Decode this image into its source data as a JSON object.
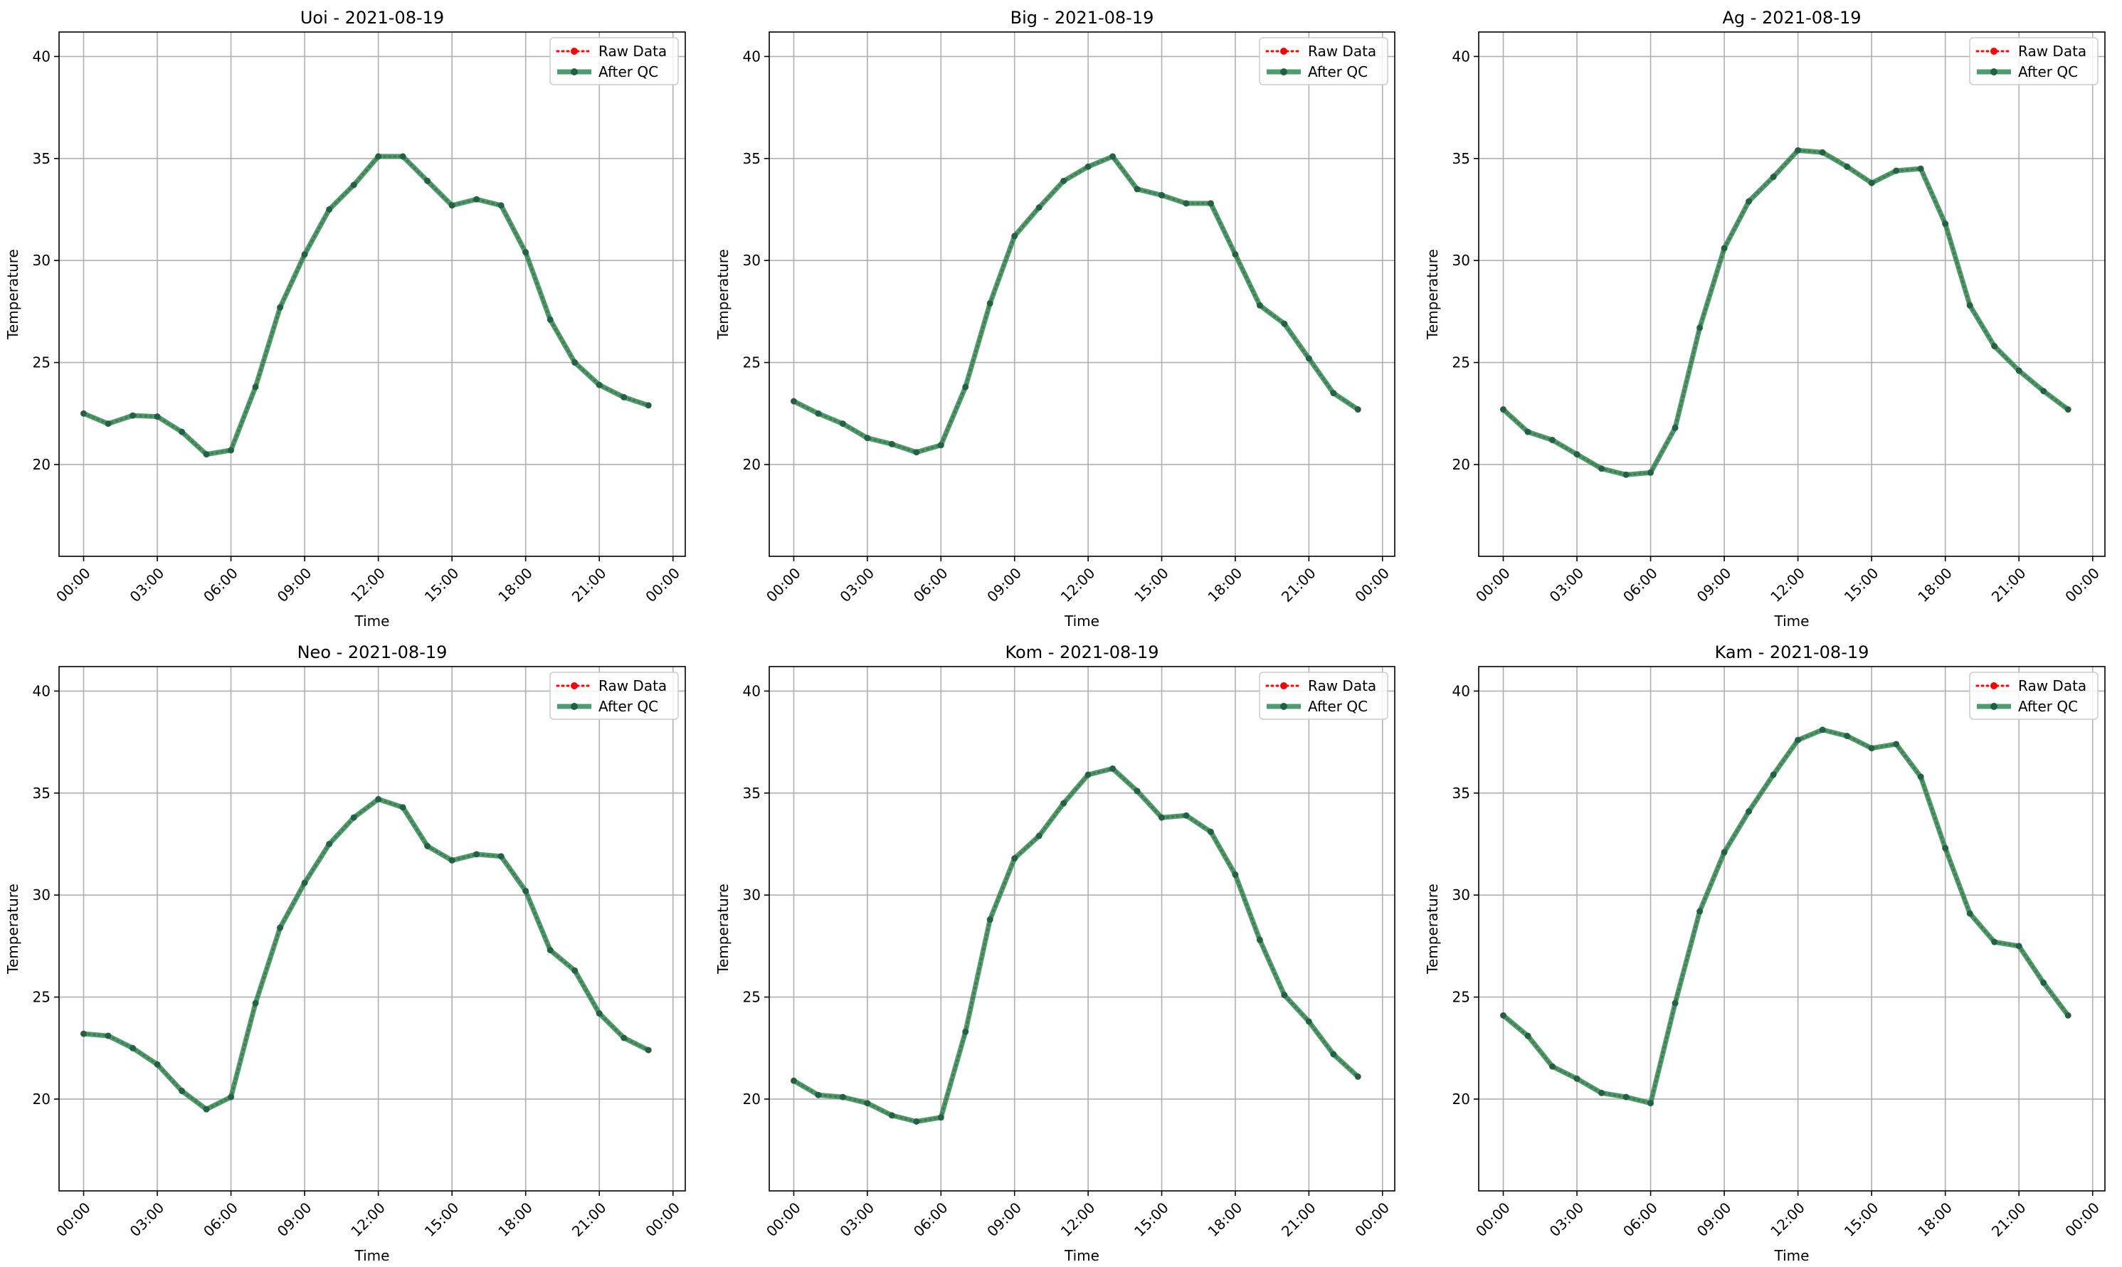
{
  "figure": {
    "legend_labels": [
      "Raw Data",
      "After QC"
    ],
    "colors": {
      "raw": "#ff0000",
      "qc": "#2e8b57",
      "grid": "#b0b0b0",
      "axis": "#000000"
    }
  },
  "chart_data": [
    {
      "type": "line",
      "title": "Uoi - 2021-08-19",
      "xlabel": "Time",
      "ylabel": "Temperature",
      "xlim": [
        "2021-08-18T23:00",
        "2021-08-20T00:30"
      ],
      "ylim": [
        15.5,
        41.2
      ],
      "x_ticks": [
        "00:00",
        "03:00",
        "06:00",
        "09:00",
        "12:00",
        "15:00",
        "18:00",
        "21:00",
        "00:00"
      ],
      "y_ticks": [
        20,
        25,
        30,
        35,
        40
      ],
      "grid": true,
      "legend_position": "upper right",
      "x": [
        "00:00",
        "01:00",
        "02:00",
        "03:00",
        "04:00",
        "05:00",
        "06:00",
        "07:00",
        "08:00",
        "09:00",
        "10:00",
        "11:00",
        "12:00",
        "13:00",
        "14:00",
        "15:00",
        "16:00",
        "17:00",
        "18:00",
        "19:00",
        "20:00",
        "21:00",
        "22:00",
        "23:00"
      ],
      "series": [
        {
          "name": "Raw Data",
          "values": [
            22.5,
            22.0,
            22.4,
            22.35,
            21.6,
            20.5,
            20.7,
            23.8,
            27.7,
            30.3,
            32.5,
            33.7,
            35.1,
            35.1,
            33.9,
            32.7,
            33.0,
            32.7,
            30.4,
            27.1,
            25.0,
            23.9,
            23.3,
            22.9
          ]
        },
        {
          "name": "After QC",
          "values": [
            22.5,
            22.0,
            22.4,
            22.35,
            21.6,
            20.5,
            20.7,
            23.8,
            27.7,
            30.3,
            32.5,
            33.7,
            35.1,
            35.1,
            33.9,
            32.7,
            33.0,
            32.7,
            30.4,
            27.1,
            25.0,
            23.9,
            23.3,
            22.9
          ]
        }
      ]
    },
    {
      "type": "line",
      "title": "Big - 2021-08-19",
      "xlabel": "Time",
      "ylabel": "Temperature",
      "xlim": [
        "2021-08-18T23:00",
        "2021-08-20T00:30"
      ],
      "ylim": [
        15.5,
        41.2
      ],
      "x_ticks": [
        "00:00",
        "03:00",
        "06:00",
        "09:00",
        "12:00",
        "15:00",
        "18:00",
        "21:00",
        "00:00"
      ],
      "y_ticks": [
        20,
        25,
        30,
        35,
        40
      ],
      "grid": true,
      "legend_position": "upper right",
      "x": [
        "00:00",
        "01:00",
        "02:00",
        "03:00",
        "04:00",
        "05:00",
        "06:00",
        "07:00",
        "08:00",
        "09:00",
        "10:00",
        "11:00",
        "12:00",
        "13:00",
        "14:00",
        "15:00",
        "16:00",
        "17:00",
        "18:00",
        "19:00",
        "20:00",
        "21:00",
        "22:00",
        "23:00"
      ],
      "series": [
        {
          "name": "Raw Data",
          "values": [
            23.1,
            22.5,
            22.0,
            21.3,
            21.0,
            20.6,
            20.95,
            23.8,
            27.9,
            31.2,
            32.6,
            33.9,
            34.6,
            35.1,
            33.5,
            33.2,
            32.8,
            32.8,
            30.3,
            27.8,
            26.9,
            25.2,
            23.5,
            22.7
          ]
        },
        {
          "name": "After QC",
          "values": [
            23.1,
            22.5,
            22.0,
            21.3,
            21.0,
            20.6,
            20.95,
            23.8,
            27.9,
            31.2,
            32.6,
            33.9,
            34.6,
            35.1,
            33.5,
            33.2,
            32.8,
            32.8,
            30.3,
            27.8,
            26.9,
            25.2,
            23.5,
            22.7
          ]
        }
      ]
    },
    {
      "type": "line",
      "title": "Ag - 2021-08-19",
      "xlabel": "Time",
      "ylabel": "Temperature",
      "xlim": [
        "2021-08-18T23:00",
        "2021-08-20T00:30"
      ],
      "ylim": [
        15.5,
        41.2
      ],
      "x_ticks": [
        "00:00",
        "03:00",
        "06:00",
        "09:00",
        "12:00",
        "15:00",
        "18:00",
        "21:00",
        "00:00"
      ],
      "y_ticks": [
        20,
        25,
        30,
        35,
        40
      ],
      "grid": true,
      "legend_position": "upper right",
      "x": [
        "00:00",
        "01:00",
        "02:00",
        "03:00",
        "04:00",
        "05:00",
        "06:00",
        "07:00",
        "08:00",
        "09:00",
        "10:00",
        "11:00",
        "12:00",
        "13:00",
        "14:00",
        "15:00",
        "16:00",
        "17:00",
        "18:00",
        "19:00",
        "20:00",
        "21:00",
        "22:00",
        "23:00"
      ],
      "series": [
        {
          "name": "Raw Data",
          "values": [
            22.7,
            21.6,
            21.2,
            20.5,
            19.8,
            19.5,
            19.6,
            21.8,
            26.7,
            30.6,
            32.9,
            34.1,
            35.4,
            35.3,
            34.6,
            33.8,
            34.4,
            34.5,
            31.8,
            27.8,
            25.8,
            24.6,
            23.6,
            22.7
          ]
        },
        {
          "name": "After QC",
          "values": [
            22.7,
            21.6,
            21.2,
            20.5,
            19.8,
            19.5,
            19.6,
            21.8,
            26.7,
            30.6,
            32.9,
            34.1,
            35.4,
            35.3,
            34.6,
            33.8,
            34.4,
            34.5,
            31.8,
            27.8,
            25.8,
            24.6,
            23.6,
            22.7
          ]
        }
      ]
    },
    {
      "type": "line",
      "title": "Neo - 2021-08-19",
      "xlabel": "Time",
      "ylabel": "Temperature",
      "xlim": [
        "2021-08-18T23:00",
        "2021-08-20T00:30"
      ],
      "ylim": [
        15.5,
        41.2
      ],
      "x_ticks": [
        "00:00",
        "03:00",
        "06:00",
        "09:00",
        "12:00",
        "15:00",
        "18:00",
        "21:00",
        "00:00"
      ],
      "y_ticks": [
        20,
        25,
        30,
        35,
        40
      ],
      "grid": true,
      "legend_position": "upper right",
      "x": [
        "00:00",
        "01:00",
        "02:00",
        "03:00",
        "04:00",
        "05:00",
        "06:00",
        "07:00",
        "08:00",
        "09:00",
        "10:00",
        "11:00",
        "12:00",
        "13:00",
        "14:00",
        "15:00",
        "16:00",
        "17:00",
        "18:00",
        "19:00",
        "20:00",
        "21:00",
        "22:00",
        "23:00"
      ],
      "series": [
        {
          "name": "Raw Data",
          "values": [
            23.2,
            23.1,
            22.5,
            21.7,
            20.4,
            19.5,
            20.1,
            24.7,
            28.4,
            30.6,
            32.5,
            33.8,
            34.7,
            34.3,
            32.4,
            31.7,
            32.0,
            31.9,
            30.2,
            27.3,
            26.3,
            24.2,
            23.0,
            22.4
          ]
        },
        {
          "name": "After QC",
          "values": [
            23.2,
            23.1,
            22.5,
            21.7,
            20.4,
            19.5,
            20.1,
            24.7,
            28.4,
            30.6,
            32.5,
            33.8,
            34.7,
            34.3,
            32.4,
            31.7,
            32.0,
            31.9,
            30.2,
            27.3,
            26.3,
            24.2,
            23.0,
            22.4
          ]
        }
      ]
    },
    {
      "type": "line",
      "title": "Kom - 2021-08-19",
      "xlabel": "Time",
      "ylabel": "Temperature",
      "xlim": [
        "2021-08-18T23:00",
        "2021-08-20T00:30"
      ],
      "ylim": [
        15.5,
        41.2
      ],
      "x_ticks": [
        "00:00",
        "03:00",
        "06:00",
        "09:00",
        "12:00",
        "15:00",
        "18:00",
        "21:00",
        "00:00"
      ],
      "y_ticks": [
        20,
        25,
        30,
        35,
        40
      ],
      "grid": true,
      "legend_position": "upper right",
      "x": [
        "00:00",
        "01:00",
        "02:00",
        "03:00",
        "04:00",
        "05:00",
        "06:00",
        "07:00",
        "08:00",
        "09:00",
        "10:00",
        "11:00",
        "12:00",
        "13:00",
        "14:00",
        "15:00",
        "16:00",
        "17:00",
        "18:00",
        "19:00",
        "20:00",
        "21:00",
        "22:00",
        "23:00"
      ],
      "series": [
        {
          "name": "Raw Data",
          "values": [
            20.9,
            20.2,
            20.1,
            19.8,
            19.2,
            18.9,
            19.1,
            23.3,
            28.8,
            31.8,
            32.9,
            34.5,
            35.9,
            36.2,
            35.1,
            33.8,
            33.9,
            33.1,
            31.0,
            27.8,
            25.1,
            23.8,
            22.2,
            21.1
          ]
        },
        {
          "name": "After QC",
          "values": [
            20.9,
            20.2,
            20.1,
            19.8,
            19.2,
            18.9,
            19.1,
            23.3,
            28.8,
            31.8,
            32.9,
            34.5,
            35.9,
            36.2,
            35.1,
            33.8,
            33.9,
            33.1,
            31.0,
            27.8,
            25.1,
            23.8,
            22.2,
            21.1
          ]
        }
      ]
    },
    {
      "type": "line",
      "title": "Kam - 2021-08-19",
      "xlabel": "Time",
      "ylabel": "Temperature",
      "xlim": [
        "2021-08-18T23:00",
        "2021-08-20T00:30"
      ],
      "ylim": [
        15.5,
        41.2
      ],
      "x_ticks": [
        "00:00",
        "03:00",
        "06:00",
        "09:00",
        "12:00",
        "15:00",
        "18:00",
        "21:00",
        "00:00"
      ],
      "y_ticks": [
        20,
        25,
        30,
        35,
        40
      ],
      "grid": true,
      "legend_position": "upper right",
      "x": [
        "00:00",
        "01:00",
        "02:00",
        "03:00",
        "04:00",
        "05:00",
        "06:00",
        "07:00",
        "08:00",
        "09:00",
        "10:00",
        "11:00",
        "12:00",
        "13:00",
        "14:00",
        "15:00",
        "16:00",
        "17:00",
        "18:00",
        "19:00",
        "20:00",
        "21:00",
        "22:00",
        "23:00"
      ],
      "series": [
        {
          "name": "Raw Data",
          "values": [
            24.1,
            23.1,
            21.6,
            21.0,
            20.3,
            20.1,
            19.8,
            24.7,
            29.2,
            32.1,
            34.1,
            35.9,
            37.6,
            38.1,
            37.8,
            37.2,
            37.4,
            35.8,
            32.3,
            29.1,
            27.7,
            27.5,
            25.7,
            24.1
          ]
        },
        {
          "name": "After QC",
          "values": [
            24.1,
            23.1,
            21.6,
            21.0,
            20.3,
            20.1,
            19.8,
            24.7,
            29.2,
            32.1,
            34.1,
            35.9,
            37.6,
            38.1,
            37.8,
            37.2,
            37.4,
            35.8,
            32.3,
            29.1,
            27.7,
            27.5,
            25.7,
            24.1
          ]
        }
      ]
    }
  ]
}
